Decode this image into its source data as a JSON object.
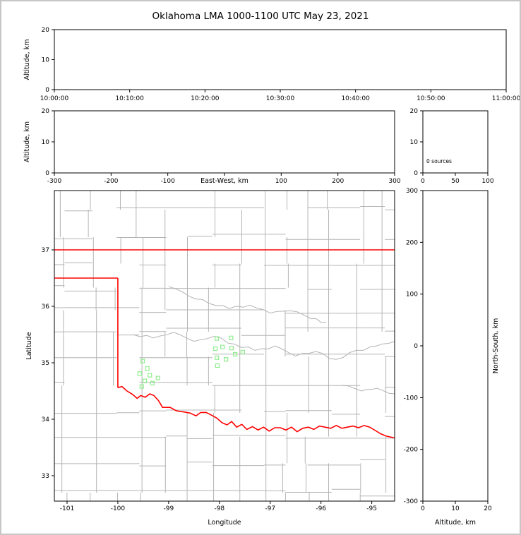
{
  "title": "Oklahoma LMA 1000-1100 UTC May 23, 2021",
  "colors": {
    "background": "#ffffff",
    "frame": "#000000",
    "page_border": "#c6c6c6",
    "county_lines": "#b4b4b4",
    "state_border": "#ff0000",
    "station_marker": "#90ee90",
    "text": "#000000"
  },
  "chart_data": [
    {
      "id": "time_height",
      "type": "scatter",
      "title": "",
      "xlabel": "",
      "ylabel": "Altitude, km",
      "ylim": [
        0,
        20
      ],
      "y_ticks": [
        0,
        10,
        20
      ],
      "x_tick_labels": [
        "10:00:00",
        "10:10:00",
        "10:20:00",
        "10:30:00",
        "10:40:00",
        "10:50:00",
        "11:00:00"
      ],
      "grid": false,
      "points": []
    },
    {
      "id": "ew_height",
      "type": "scatter",
      "xlabel": "East-West, km",
      "ylabel": "Altitude, km",
      "xlim": [
        -300,
        300
      ],
      "x_tick_marks": [
        -300,
        -200,
        -100,
        0,
        100,
        200,
        300
      ],
      "x_tick_labels": [
        "-300",
        "-200",
        "-100",
        "",
        "100",
        "200",
        "300"
      ],
      "ylim": [
        0,
        20
      ],
      "y_ticks": [
        0,
        10,
        20
      ],
      "grid": false,
      "points": []
    },
    {
      "id": "altitude_histogram",
      "type": "line",
      "annotation": "0 sources",
      "xlim": [
        0,
        100
      ],
      "x_ticks": [
        0,
        50,
        100
      ],
      "ylim": [
        0,
        20
      ],
      "y_ticks": [
        0,
        10,
        20
      ],
      "grid": false,
      "points": []
    },
    {
      "id": "plan_view_map",
      "type": "scatter",
      "xlabel": "Longitude",
      "ylabel": "Latitude",
      "xlim": [
        -101.25,
        -94.55
      ],
      "x_ticks": [
        -101,
        -100,
        -99,
        -98,
        -97,
        -96,
        -95
      ],
      "ylim": [
        32.55,
        38.05
      ],
      "y_ticks": [
        37,
        36,
        35,
        34,
        33
      ],
      "grid": false,
      "sources": [],
      "stations": [
        [
          -98.05,
          35.43
        ],
        [
          -97.77,
          35.44
        ],
        [
          -98.08,
          35.25
        ],
        [
          -97.94,
          35.28
        ],
        [
          -97.76,
          35.26
        ],
        [
          -98.05,
          35.09
        ],
        [
          -97.87,
          35.06
        ],
        [
          -97.69,
          35.15
        ],
        [
          -97.54,
          35.19
        ],
        [
          -98.04,
          34.95
        ],
        [
          -99.51,
          35.03
        ],
        [
          -99.42,
          34.9
        ],
        [
          -99.57,
          34.81
        ],
        [
          -99.37,
          34.78
        ],
        [
          -99.47,
          34.68
        ],
        [
          -99.32,
          34.64
        ],
        [
          -99.21,
          34.73
        ],
        [
          -99.53,
          34.58
        ]
      ],
      "state_border": {
        "north_border_lat": 37.0,
        "panhandle_south_lat": 36.5,
        "meridian_100_lon": -100.0,
        "meridian_100_south_lat": 34.56,
        "red_river": [
          [
            -100.0,
            34.56
          ],
          [
            -99.92,
            34.58
          ],
          [
            -99.82,
            34.5
          ],
          [
            -99.71,
            34.44
          ],
          [
            -99.62,
            34.37
          ],
          [
            -99.55,
            34.42
          ],
          [
            -99.46,
            34.39
          ],
          [
            -99.37,
            34.45
          ],
          [
            -99.29,
            34.42
          ],
          [
            -99.2,
            34.33
          ],
          [
            -99.12,
            34.21
          ],
          [
            -98.97,
            34.21
          ],
          [
            -98.85,
            34.15
          ],
          [
            -98.71,
            34.13
          ],
          [
            -98.58,
            34.11
          ],
          [
            -98.46,
            34.06
          ],
          [
            -98.37,
            34.12
          ],
          [
            -98.26,
            34.12
          ],
          [
            -98.15,
            34.07
          ],
          [
            -98.05,
            34.02
          ],
          [
            -97.95,
            33.94
          ],
          [
            -97.85,
            33.9
          ],
          [
            -97.76,
            33.96
          ],
          [
            -97.66,
            33.86
          ],
          [
            -97.56,
            33.91
          ],
          [
            -97.46,
            33.82
          ],
          [
            -97.35,
            33.87
          ],
          [
            -97.24,
            33.81
          ],
          [
            -97.13,
            33.86
          ],
          [
            -97.02,
            33.79
          ],
          [
            -96.91,
            33.85
          ],
          [
            -96.8,
            33.85
          ],
          [
            -96.69,
            33.81
          ],
          [
            -96.58,
            33.86
          ],
          [
            -96.47,
            33.78
          ],
          [
            -96.36,
            33.84
          ],
          [
            -96.25,
            33.86
          ],
          [
            -96.14,
            33.82
          ],
          [
            -96.03,
            33.88
          ],
          [
            -95.92,
            33.86
          ],
          [
            -95.81,
            33.84
          ],
          [
            -95.7,
            33.89
          ],
          [
            -95.59,
            33.84
          ],
          [
            -95.48,
            33.86
          ],
          [
            -95.37,
            33.88
          ],
          [
            -95.26,
            33.85
          ],
          [
            -95.15,
            33.89
          ],
          [
            -95.04,
            33.86
          ],
          [
            -94.93,
            33.8
          ],
          [
            -94.82,
            33.74
          ],
          [
            -94.71,
            33.7
          ],
          [
            -94.6,
            33.68
          ],
          [
            -94.55,
            33.67
          ]
        ]
      },
      "rivers": [
        [
          [
            -99.7,
            35.5
          ],
          [
            -99.3,
            35.44
          ],
          [
            -98.9,
            35.54
          ],
          [
            -98.5,
            35.38
          ],
          [
            -98.1,
            35.47
          ],
          [
            -97.7,
            35.33
          ],
          [
            -97.3,
            35.22
          ],
          [
            -96.9,
            35.3
          ],
          [
            -96.5,
            35.12
          ],
          [
            -96.1,
            35.2
          ],
          [
            -95.7,
            35.06
          ],
          [
            -95.3,
            35.22
          ],
          [
            -94.9,
            35.3
          ],
          [
            -94.55,
            35.38
          ]
        ],
        [
          [
            -99.0,
            36.35
          ],
          [
            -98.6,
            36.18
          ],
          [
            -98.2,
            36.05
          ],
          [
            -97.8,
            35.96
          ],
          [
            -97.4,
            36.02
          ],
          [
            -97.0,
            35.88
          ],
          [
            -96.6,
            35.92
          ],
          [
            -96.2,
            35.78
          ],
          [
            -95.9,
            35.72
          ]
        ],
        [
          [
            -95.6,
            34.6
          ],
          [
            -95.2,
            34.5
          ],
          [
            -94.9,
            34.55
          ],
          [
            -94.55,
            34.45
          ]
        ]
      ]
    },
    {
      "id": "ns_height",
      "type": "scatter",
      "xlabel": "Altitude, km",
      "ylabel": "North-South, km",
      "xlim": [
        0,
        20
      ],
      "x_ticks": [
        0,
        10,
        20
      ],
      "ylim": [
        -300,
        300
      ],
      "y_ticks": [
        300,
        200,
        100,
        0,
        -100,
        -200,
        -300
      ],
      "grid": false,
      "points": []
    }
  ]
}
